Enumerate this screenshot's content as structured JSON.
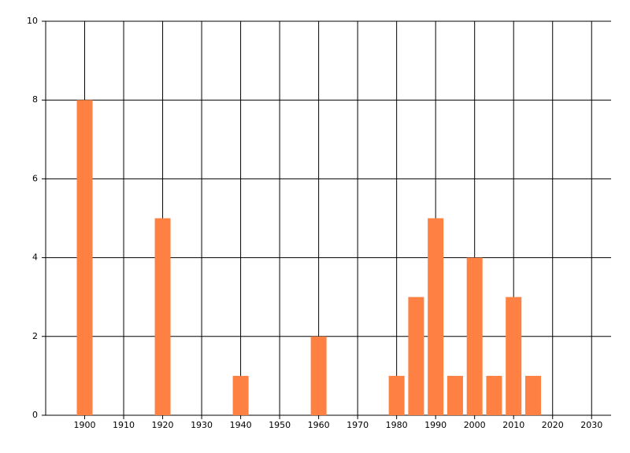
{
  "chart_data": {
    "type": "bar",
    "x": [
      1900,
      1920,
      1940,
      1960,
      1980,
      1985,
      1990,
      1995,
      2000,
      2005,
      2010,
      2015
    ],
    "values": [
      8,
      5,
      1,
      2,
      1,
      3,
      5,
      1,
      4,
      1,
      3,
      1
    ],
    "color": "#fe8042",
    "xlim": [
      1890,
      2035
    ],
    "xticks": [
      1900,
      1910,
      1920,
      1930,
      1940,
      1950,
      1960,
      1970,
      1980,
      1990,
      2000,
      2010,
      2020,
      2030
    ],
    "ylim": [
      0,
      10
    ],
    "yticks": [
      0,
      2,
      4,
      6,
      8,
      10
    ],
    "grid": true
  }
}
